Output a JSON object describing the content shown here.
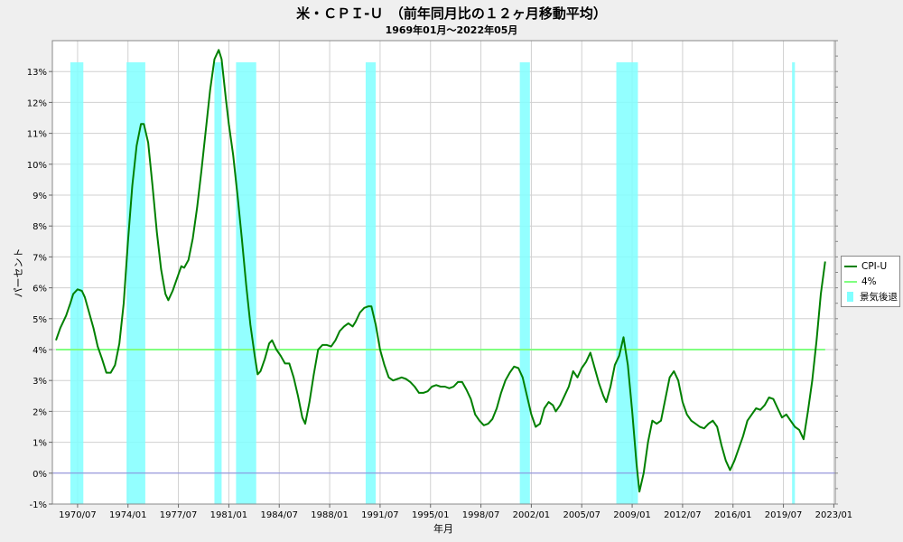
{
  "chart_data": {
    "type": "line",
    "title": "米・ＣＰＩ-Ｕ　（前年同月比の１２ヶ月移動平均）",
    "subtitle": "1969年01月～2022年05月",
    "xlabel": "年月",
    "ylabel": "パーセント",
    "ylim": [
      -1,
      14
    ],
    "xlim": [
      1968.75,
      2023.1
    ],
    "y_ticks": [
      -1,
      0,
      1,
      2,
      3,
      4,
      5,
      6,
      7,
      8,
      9,
      10,
      11,
      12,
      13
    ],
    "y_tick_labels": [
      "-1%",
      "0%",
      "1%",
      "2%",
      "3%",
      "4%",
      "5%",
      "6%",
      "7%",
      "8%",
      "9%",
      "10%",
      "11%",
      "12%",
      "13%"
    ],
    "x_ticks": [
      1970.5,
      1974.0,
      1977.5,
      1981.0,
      1984.5,
      1988.0,
      1991.5,
      1995.0,
      1998.5,
      2002.0,
      2005.5,
      2009.0,
      2012.5,
      2016.0,
      2019.5,
      2023.0
    ],
    "x_tick_labels": [
      "1970/07",
      "1974/01",
      "1977/07",
      "1981/01",
      "1984/07",
      "1988/01",
      "1991/07",
      "1995/01",
      "1998/07",
      "2002/01",
      "2005/07",
      "2009/01",
      "2012/07",
      "2016/01",
      "2019/07",
      "2023/01"
    ],
    "grid": true,
    "legend_position": "right",
    "legend": [
      "CPI-U",
      "4%",
      "景気後退"
    ],
    "series": [
      {
        "name": "CPI-U",
        "color": "#008000",
        "points": [
          [
            1969.0,
            4.3
          ],
          [
            1969.3,
            4.7
          ],
          [
            1969.7,
            5.1
          ],
          [
            1970.0,
            5.5
          ],
          [
            1970.2,
            5.8
          ],
          [
            1970.5,
            5.95
          ],
          [
            1970.8,
            5.9
          ],
          [
            1971.0,
            5.7
          ],
          [
            1971.3,
            5.2
          ],
          [
            1971.6,
            4.7
          ],
          [
            1971.9,
            4.1
          ],
          [
            1972.2,
            3.7
          ],
          [
            1972.5,
            3.25
          ],
          [
            1972.8,
            3.25
          ],
          [
            1973.1,
            3.5
          ],
          [
            1973.4,
            4.2
          ],
          [
            1973.7,
            5.5
          ],
          [
            1974.0,
            7.5
          ],
          [
            1974.3,
            9.3
          ],
          [
            1974.6,
            10.6
          ],
          [
            1974.9,
            11.3
          ],
          [
            1975.1,
            11.3
          ],
          [
            1975.4,
            10.7
          ],
          [
            1975.7,
            9.3
          ],
          [
            1976.0,
            7.8
          ],
          [
            1976.3,
            6.6
          ],
          [
            1976.6,
            5.8
          ],
          [
            1976.8,
            5.6
          ],
          [
            1977.1,
            5.9
          ],
          [
            1977.4,
            6.3
          ],
          [
            1977.7,
            6.7
          ],
          [
            1977.9,
            6.65
          ],
          [
            1978.2,
            6.9
          ],
          [
            1978.5,
            7.6
          ],
          [
            1978.8,
            8.6
          ],
          [
            1979.1,
            9.8
          ],
          [
            1979.4,
            11.1
          ],
          [
            1979.7,
            12.4
          ],
          [
            1980.0,
            13.4
          ],
          [
            1980.3,
            13.7
          ],
          [
            1980.5,
            13.4
          ],
          [
            1980.8,
            12.1
          ],
          [
            1981.0,
            11.3
          ],
          [
            1981.3,
            10.3
          ],
          [
            1981.6,
            9.0
          ],
          [
            1981.9,
            7.6
          ],
          [
            1982.2,
            6.1
          ],
          [
            1982.5,
            4.8
          ],
          [
            1982.8,
            3.8
          ],
          [
            1983.0,
            3.2
          ],
          [
            1983.2,
            3.3
          ],
          [
            1983.5,
            3.7
          ],
          [
            1983.8,
            4.2
          ],
          [
            1984.0,
            4.3
          ],
          [
            1984.3,
            4.0
          ],
          [
            1984.6,
            3.8
          ],
          [
            1984.9,
            3.55
          ],
          [
            1985.2,
            3.55
          ],
          [
            1985.5,
            3.1
          ],
          [
            1985.8,
            2.5
          ],
          [
            1986.1,
            1.8
          ],
          [
            1986.3,
            1.6
          ],
          [
            1986.6,
            2.3
          ],
          [
            1986.9,
            3.2
          ],
          [
            1987.2,
            4.0
          ],
          [
            1987.5,
            4.15
          ],
          [
            1987.8,
            4.15
          ],
          [
            1988.1,
            4.1
          ],
          [
            1988.4,
            4.3
          ],
          [
            1988.7,
            4.6
          ],
          [
            1989.0,
            4.75
          ],
          [
            1989.3,
            4.85
          ],
          [
            1989.6,
            4.75
          ],
          [
            1989.8,
            4.9
          ],
          [
            1990.1,
            5.2
          ],
          [
            1990.4,
            5.35
          ],
          [
            1990.7,
            5.4
          ],
          [
            1990.9,
            5.4
          ],
          [
            1991.2,
            4.8
          ],
          [
            1991.5,
            4.0
          ],
          [
            1991.8,
            3.5
          ],
          [
            1992.1,
            3.1
          ],
          [
            1992.4,
            3.0
          ],
          [
            1992.7,
            3.05
          ],
          [
            1993.0,
            3.1
          ],
          [
            1993.3,
            3.05
          ],
          [
            1993.6,
            2.95
          ],
          [
            1993.9,
            2.8
          ],
          [
            1994.2,
            2.6
          ],
          [
            1994.5,
            2.6
          ],
          [
            1994.8,
            2.65
          ],
          [
            1995.1,
            2.8
          ],
          [
            1995.4,
            2.85
          ],
          [
            1995.7,
            2.8
          ],
          [
            1996.0,
            2.8
          ],
          [
            1996.3,
            2.75
          ],
          [
            1996.6,
            2.8
          ],
          [
            1996.9,
            2.95
          ],
          [
            1997.2,
            2.95
          ],
          [
            1997.5,
            2.7
          ],
          [
            1997.8,
            2.4
          ],
          [
            1998.1,
            1.9
          ],
          [
            1998.4,
            1.7
          ],
          [
            1998.7,
            1.55
          ],
          [
            1999.0,
            1.6
          ],
          [
            1999.3,
            1.75
          ],
          [
            1999.6,
            2.1
          ],
          [
            1999.9,
            2.6
          ],
          [
            2000.2,
            3.0
          ],
          [
            2000.5,
            3.25
          ],
          [
            2000.8,
            3.45
          ],
          [
            2001.1,
            3.4
          ],
          [
            2001.4,
            3.1
          ],
          [
            2001.7,
            2.5
          ],
          [
            2002.0,
            1.9
          ],
          [
            2002.3,
            1.5
          ],
          [
            2002.6,
            1.6
          ],
          [
            2002.9,
            2.1
          ],
          [
            2003.2,
            2.3
          ],
          [
            2003.5,
            2.2
          ],
          [
            2003.7,
            2.0
          ],
          [
            2004.0,
            2.2
          ],
          [
            2004.3,
            2.5
          ],
          [
            2004.6,
            2.8
          ],
          [
            2004.9,
            3.3
          ],
          [
            2005.2,
            3.1
          ],
          [
            2005.5,
            3.4
          ],
          [
            2005.8,
            3.6
          ],
          [
            2006.1,
            3.9
          ],
          [
            2006.4,
            3.4
          ],
          [
            2006.7,
            2.9
          ],
          [
            2007.0,
            2.5
          ],
          [
            2007.2,
            2.3
          ],
          [
            2007.5,
            2.8
          ],
          [
            2007.8,
            3.5
          ],
          [
            2008.1,
            3.8
          ],
          [
            2008.4,
            4.4
          ],
          [
            2008.7,
            3.5
          ],
          [
            2009.0,
            2.0
          ],
          [
            2009.3,
            0.3
          ],
          [
            2009.5,
            -0.6
          ],
          [
            2009.8,
            0.0
          ],
          [
            2010.1,
            1.0
          ],
          [
            2010.4,
            1.7
          ],
          [
            2010.7,
            1.6
          ],
          [
            2011.0,
            1.7
          ],
          [
            2011.3,
            2.4
          ],
          [
            2011.6,
            3.1
          ],
          [
            2011.9,
            3.3
          ],
          [
            2012.2,
            3.0
          ],
          [
            2012.5,
            2.3
          ],
          [
            2012.8,
            1.9
          ],
          [
            2013.1,
            1.7
          ],
          [
            2013.4,
            1.6
          ],
          [
            2013.7,
            1.5
          ],
          [
            2014.0,
            1.45
          ],
          [
            2014.3,
            1.6
          ],
          [
            2014.6,
            1.7
          ],
          [
            2014.9,
            1.5
          ],
          [
            2015.2,
            0.9
          ],
          [
            2015.5,
            0.4
          ],
          [
            2015.8,
            0.1
          ],
          [
            2016.1,
            0.4
          ],
          [
            2016.4,
            0.8
          ],
          [
            2016.7,
            1.2
          ],
          [
            2017.0,
            1.7
          ],
          [
            2017.3,
            1.9
          ],
          [
            2017.6,
            2.1
          ],
          [
            2017.9,
            2.05
          ],
          [
            2018.2,
            2.2
          ],
          [
            2018.5,
            2.45
          ],
          [
            2018.8,
            2.4
          ],
          [
            2019.1,
            2.1
          ],
          [
            2019.4,
            1.8
          ],
          [
            2019.7,
            1.9
          ],
          [
            2020.0,
            1.7
          ],
          [
            2020.3,
            1.5
          ],
          [
            2020.6,
            1.4
          ],
          [
            2020.9,
            1.1
          ],
          [
            2021.2,
            2.0
          ],
          [
            2021.5,
            3.0
          ],
          [
            2021.8,
            4.3
          ],
          [
            2022.1,
            5.8
          ],
          [
            2022.4,
            6.85
          ]
        ]
      },
      {
        "name": "4%",
        "color": "#80ff80",
        "points": [
          [
            1969.0,
            4.0
          ],
          [
            2022.4,
            4.0
          ]
        ]
      }
    ],
    "zero_line_color": "#8888dd",
    "recession_color": "#80ffff",
    "recessions": [
      [
        1970.0,
        1970.9
      ],
      [
        1973.9,
        1975.2
      ],
      [
        1980.0,
        1980.5
      ],
      [
        1981.5,
        1982.9
      ],
      [
        1990.5,
        1991.2
      ],
      [
        2001.2,
        2001.9
      ],
      [
        2007.9,
        2009.4
      ],
      [
        2020.1,
        2020.3
      ]
    ]
  }
}
